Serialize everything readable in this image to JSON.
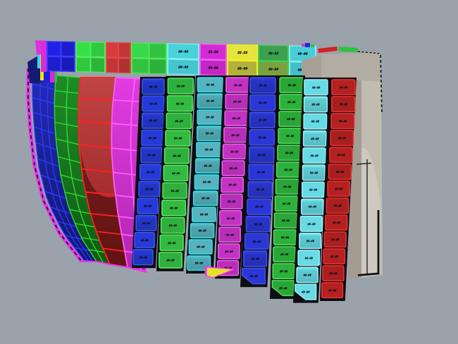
{
  "viewport": {
    "name": "cad-3d-perspective-viewport",
    "background_color": "#9aa2ab"
  },
  "plates": {
    "illegible_label_placeholder": "##-##",
    "label_color": "#0b0b14"
  },
  "strakes": {
    "outer_edge_color": "#ee2eee",
    "outer_edge_dash_color": "#161616",
    "bands": [
      {
        "name": "bow-strake-blue",
        "line": "#2e3bff",
        "fill_top": "#232cb8",
        "fill_bottom": "#11166e",
        "rows": 13,
        "dividers": [
          0.35,
          0.68
        ]
      },
      {
        "name": "bow-strake-green",
        "line": "#2ee22e",
        "fill_top": "#1e8c26",
        "fill_bottom": "#0f5a14",
        "rows": 12,
        "dividers": [
          0.5
        ]
      },
      {
        "name": "bow-strake-red",
        "line": "#ff2121",
        "fill_top": "#c04444",
        "fill_bottom": "#952020",
        "rows": 9,
        "dividers": [],
        "dark_overlay": "rgba(40,0,0,0.45)"
      },
      {
        "name": "bow-strake-magenta",
        "line": "#ff5cff",
        "fill_top": "#e13ce1",
        "fill_bottom": "#b027b0",
        "rows": 9,
        "dividers": [
          0.72
        ]
      }
    ]
  },
  "plate_columns": [
    {
      "name": "plate-column-1-blue",
      "face": "#2236c8",
      "border": "#3c55ee",
      "rows": 11
    },
    {
      "name": "plate-column-2-green",
      "face": "#34c244",
      "border": "#5ce862",
      "rows": 11
    },
    {
      "name": "plate-column-3-teal",
      "face": "#4fa7b2",
      "border": "#32dfe8",
      "rows": 12
    },
    {
      "name": "plate-column-4-magenta",
      "face": "#cb34cb",
      "border": "#ef62ef",
      "rows": 12
    },
    {
      "name": "plate-column-5-blue",
      "face": "#2733c6",
      "border": "#4150e8",
      "rows": 12
    },
    {
      "name": "plate-column-6-green",
      "face": "#2eb83c",
      "border": "#55de5e",
      "rows": 13
    },
    {
      "name": "plate-column-7-cyan",
      "face": "#5ecbd4",
      "border": "#a2ecf0",
      "rows": 13
    },
    {
      "name": "plate-column-8-red",
      "face": "#bb2222",
      "border": "#f03030",
      "rows": 13
    }
  ],
  "top_band": {
    "grid_blocks": [
      {
        "name": "sheer-block-blue",
        "face": "#1d1dce",
        "line": "#3c3cfa"
      },
      {
        "name": "sheer-block-green",
        "face": "#2fc83f",
        "line": "#5ae862"
      },
      {
        "name": "sheer-block-red",
        "face": "#c03636",
        "line": "#e44848"
      },
      {
        "name": "sheer-block-green2",
        "face": "#32c242",
        "line": "#55e55c"
      }
    ],
    "labeled_blocks": [
      {
        "name": "sheer-plate-cyan",
        "row1": "#4ad2da",
        "row2": "#45c6ce",
        "border": "#84eef4"
      },
      {
        "name": "sheer-plate-magenta",
        "row1": "#d32ad3",
        "row2": "#c426c4",
        "border": "#f05ef0"
      },
      {
        "name": "sheer-plate-yellow",
        "row1": "#e4e43c",
        "row2": "#b2b23a",
        "border": "#f0f028"
      },
      {
        "name": "sheer-plate-darkgreen",
        "row1": "#3da04e",
        "row2": "#79a23e",
        "border": "#46cc55"
      },
      {
        "name": "sheer-plate-cyan2",
        "row1": "#49ccd6",
        "row2": "#43bfca",
        "border": "#8ceaf0"
      }
    ],
    "magenta_strip": "#d82cd8"
  },
  "corner_cluster": {
    "navy": "#131b74",
    "cyan": "#30d8e0",
    "yellow": "#e8e820",
    "magenta": "#e030e0",
    "blue": "#2020d8",
    "strip": "#d828d8",
    "green": "#28c838"
  },
  "stern_structure": {
    "top_face": "#b2aca2",
    "top_face_shaded": "#a6a096",
    "side_face": "#c1bbb2",
    "inner_panel": "#cdc9c0",
    "shadow_strip": "#a29c92",
    "outline_color": "#121212",
    "accent_red": "#d42222",
    "accent_green": "#2fc240",
    "tiny_bits": {
      "magenta": "#d830d8",
      "blue": "#2828e0",
      "green": "#30c040"
    }
  },
  "extras": {
    "yellow_wedge": "#e6e22a",
    "wedge_outline": "#f040f0",
    "magenta_chip": "#cf2ecf"
  }
}
